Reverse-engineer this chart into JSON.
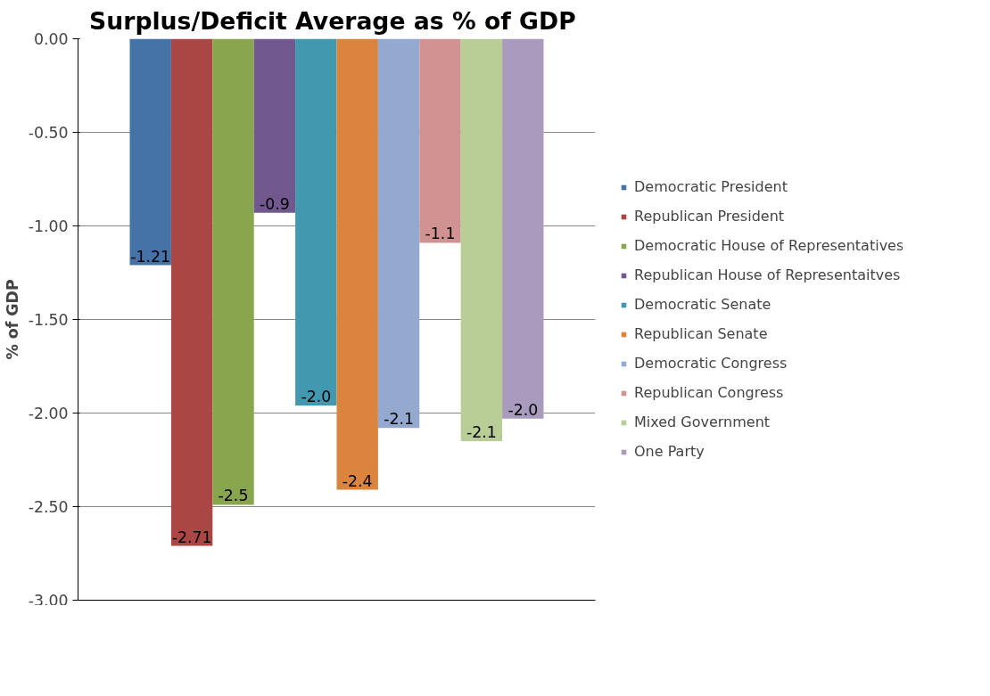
{
  "chart_data": {
    "type": "bar",
    "title": "Surplus/Deficit  Average as % of GDP",
    "ylabel": "% of GDP",
    "categories": [
      null
    ],
    "series": [
      {
        "name": "Democratic President",
        "color": "#4572a7",
        "values": [
          -1.21
        ],
        "value_labels": [
          "-1.21"
        ]
      },
      {
        "name": "Republican President",
        "color": "#aa4643",
        "values": [
          -2.71
        ],
        "value_labels": [
          "-2.71"
        ]
      },
      {
        "name": "Democratic House of Representatives",
        "color": "#89a54e",
        "values": [
          -2.49
        ],
        "value_labels": [
          "-2.5"
        ]
      },
      {
        "name": "Republican House of Representaitves",
        "color": "#71588f",
        "values": [
          -0.93
        ],
        "value_labels": [
          "-0.9"
        ]
      },
      {
        "name": "Democratic Senate",
        "color": "#4198af",
        "values": [
          -1.96
        ],
        "value_labels": [
          "-2.0"
        ]
      },
      {
        "name": "Republican Senate",
        "color": "#db843d",
        "values": [
          -2.41
        ],
        "value_labels": [
          "-2.4"
        ]
      },
      {
        "name": "Democratic Congress",
        "color": "#93a9cf",
        "values": [
          -2.08
        ],
        "value_labels": [
          "-2.1"
        ]
      },
      {
        "name": "Republican Congress",
        "color": "#d19392",
        "values": [
          -1.09
        ],
        "value_labels": [
          "-1.1"
        ]
      },
      {
        "name": "Mixed Government",
        "color": "#b9cd96",
        "values": [
          -2.15
        ],
        "value_labels": [
          "-2.1"
        ]
      },
      {
        "name": "One Party",
        "color": "#a99bbd",
        "values": [
          -2.03
        ],
        "value_labels": [
          "-2.0"
        ]
      }
    ],
    "ylim": [
      -3,
      0
    ],
    "yticks": [
      {
        "value": 0,
        "label": "0.00"
      },
      {
        "value": -0.5,
        "label": "-0.50"
      },
      {
        "value": -1,
        "label": "-1.00"
      },
      {
        "value": -1.5,
        "label": "-1.50"
      },
      {
        "value": -2,
        "label": "-2.00"
      },
      {
        "value": -2.5,
        "label": "-2.50"
      },
      {
        "value": -3,
        "label": "-3.00"
      }
    ],
    "grid": "y",
    "legend": "right"
  }
}
